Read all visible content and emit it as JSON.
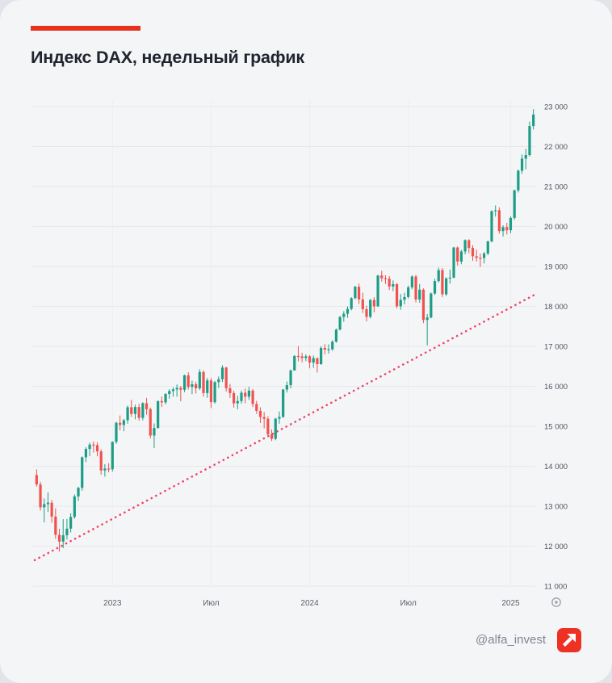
{
  "card": {
    "accent_color": "#e5321e"
  },
  "header": {
    "title": "Индекс DAX, недельный график"
  },
  "footer": {
    "handle": "@alfa_invest",
    "logo_color": "#ee3124",
    "logo_icon": "arrow-up-right"
  },
  "chart_data": {
    "type": "candlestick",
    "title": "Индекс DAX, недельный график",
    "timeframe": "weekly",
    "legend": "none",
    "grid": "on",
    "y_axis": {
      "position": "right",
      "min": 11000,
      "max": 23000,
      "step": 1000,
      "tick_labels": [
        "23 000",
        "22 000",
        "21 000",
        "20 000",
        "19 000",
        "18 000",
        "17 000",
        "16 000",
        "15 000",
        "14 000",
        "13 000",
        "12 000",
        "11 000"
      ]
    },
    "x_axis": {
      "ticks": [
        {
          "label": "2023",
          "index": 20.5
        },
        {
          "label": "Июл",
          "index": 46.5
        },
        {
          "label": "2024",
          "index": 72.5
        },
        {
          "label": "Июл",
          "index": 98.5
        },
        {
          "label": "2025",
          "index": 125.5
        }
      ]
    },
    "colors": {
      "up": "#1d9d86",
      "down": "#ef5350",
      "trendline": "#f04463",
      "grid": "#e7e8ec",
      "grid_v": "#ededf1",
      "axis_text": "#4d525b"
    },
    "trendline": {
      "style": "dotted",
      "start": {
        "index": 0,
        "value": 11650
      },
      "end": {
        "index": 132,
        "value": 18300
      }
    },
    "ohlc": [
      [
        13780,
        13920,
        13490,
        13544
      ],
      [
        13544,
        13610,
        12890,
        12971
      ],
      [
        12971,
        13195,
        12595,
        13050
      ],
      [
        13050,
        13345,
        12855,
        13088
      ],
      [
        13088,
        13155,
        12588,
        12741
      ],
      [
        12741,
        12945,
        12182,
        12284
      ],
      [
        12284,
        12435,
        11862,
        12114
      ],
      [
        12114,
        12675,
        11950,
        12273
      ],
      [
        12273,
        12680,
        12164,
        12438
      ],
      [
        12438,
        12825,
        12342,
        12731
      ],
      [
        12731,
        13295,
        12685,
        13244
      ],
      [
        13244,
        13485,
        13130,
        13460
      ],
      [
        13460,
        14245,
        13388,
        14224
      ],
      [
        14224,
        14475,
        14105,
        14432
      ],
      [
        14432,
        14590,
        14250,
        14541
      ],
      [
        14541,
        14620,
        14342,
        14529
      ],
      [
        14529,
        14600,
        14248,
        14371
      ],
      [
        14371,
        14425,
        13792,
        13894
      ],
      [
        13894,
        14050,
        13740,
        13941
      ],
      [
        13941,
        14075,
        13848,
        13924
      ],
      [
        13924,
        14620,
        13870,
        14610
      ],
      [
        14610,
        15115,
        14560,
        15087
      ],
      [
        15087,
        15270,
        14900,
        15034
      ],
      [
        15034,
        15185,
        14875,
        15150
      ],
      [
        15150,
        15520,
        15065,
        15476
      ],
      [
        15476,
        15660,
        15235,
        15308
      ],
      [
        15308,
        15540,
        15175,
        15482
      ],
      [
        15482,
        15560,
        15140,
        15210
      ],
      [
        15210,
        15600,
        15152,
        15578
      ],
      [
        15578,
        15710,
        15290,
        15428
      ],
      [
        15428,
        15465,
        14696,
        14768
      ],
      [
        14768,
        15070,
        14458,
        14957
      ],
      [
        14957,
        15645,
        14940,
        15629
      ],
      [
        15629,
        15745,
        15482,
        15598
      ],
      [
        15598,
        15830,
        15550,
        15808
      ],
      [
        15808,
        15925,
        15690,
        15882
      ],
      [
        15882,
        15975,
        15740,
        15922
      ],
      [
        15922,
        16045,
        15740,
        15961
      ],
      [
        15961,
        16010,
        15625,
        15914
      ],
      [
        15914,
        16290,
        15855,
        16275
      ],
      [
        16275,
        16352,
        15920,
        15984
      ],
      [
        15984,
        16140,
        15805,
        16051
      ],
      [
        16051,
        16115,
        15820,
        15950
      ],
      [
        15950,
        16427,
        15910,
        16358
      ],
      [
        16358,
        16400,
        15740,
        15830
      ],
      [
        15830,
        16210,
        15715,
        16148
      ],
      [
        16148,
        16210,
        15455,
        15603
      ],
      [
        15603,
        16135,
        15565,
        16105
      ],
      [
        16105,
        16245,
        15960,
        16177
      ],
      [
        16177,
        16528,
        16105,
        16469
      ],
      [
        16469,
        16490,
        15870,
        15952
      ],
      [
        15952,
        16060,
        15710,
        15832
      ],
      [
        15832,
        15890,
        15468,
        15574
      ],
      [
        15574,
        15760,
        15425,
        15631
      ],
      [
        15631,
        15895,
        15565,
        15840
      ],
      [
        15840,
        15945,
        15575,
        15740
      ],
      [
        15740,
        15990,
        15660,
        15893
      ],
      [
        15893,
        15935,
        15480,
        15557
      ],
      [
        15557,
        15635,
        15310,
        15386
      ],
      [
        15386,
        15475,
        15080,
        15230
      ],
      [
        15230,
        15355,
        14948,
        15187
      ],
      [
        15187,
        15250,
        14740,
        14798
      ],
      [
        14798,
        14922,
        14630,
        14687
      ],
      [
        14687,
        15210,
        14650,
        15189
      ],
      [
        15189,
        15368,
        15065,
        15234
      ],
      [
        15234,
        15935,
        15210,
        15919
      ],
      [
        15919,
        16120,
        15845,
        16029
      ],
      [
        16029,
        16420,
        15948,
        16397
      ],
      [
        16397,
        16780,
        16390,
        16759
      ],
      [
        16759,
        17003,
        16625,
        16751
      ],
      [
        16751,
        16840,
        16600,
        16706
      ],
      [
        16706,
        16800,
        16630,
        16752
      ],
      [
        16752,
        16780,
        16450,
        16594
      ],
      [
        16594,
        16770,
        16465,
        16704
      ],
      [
        16704,
        16720,
        16345,
        16555
      ],
      [
        16555,
        17005,
        16540,
        16961
      ],
      [
        16961,
        17055,
        16800,
        16918
      ],
      [
        16918,
        17050,
        16820,
        16926
      ],
      [
        16926,
        17150,
        16890,
        17117
      ],
      [
        17117,
        17445,
        17090,
        17419
      ],
      [
        17419,
        17760,
        17400,
        17735
      ],
      [
        17735,
        17880,
        17615,
        17815
      ],
      [
        17815,
        18000,
        17715,
        17937
      ],
      [
        17937,
        18230,
        17900,
        18205
      ],
      [
        18205,
        18513,
        18180,
        18492
      ],
      [
        18492,
        18570,
        18060,
        18175
      ],
      [
        18175,
        18340,
        17830,
        17930
      ],
      [
        17930,
        18020,
        17625,
        17737
      ],
      [
        17737,
        18185,
        17700,
        18161
      ],
      [
        18161,
        18230,
        17850,
        18001
      ],
      [
        18001,
        18790,
        17990,
        18773
      ],
      [
        18773,
        18893,
        18620,
        18704
      ],
      [
        18704,
        18780,
        18560,
        18693
      ],
      [
        18693,
        18760,
        18410,
        18497
      ],
      [
        18497,
        18650,
        18385,
        18557
      ],
      [
        18557,
        18580,
        17950,
        18002
      ],
      [
        18002,
        18310,
        17915,
        18164
      ],
      [
        18164,
        18340,
        18050,
        18235
      ],
      [
        18235,
        18520,
        18200,
        18476
      ],
      [
        18476,
        18780,
        18425,
        18748
      ],
      [
        18748,
        18790,
        18100,
        18172
      ],
      [
        18172,
        18560,
        18090,
        18418
      ],
      [
        18418,
        18450,
        17580,
        17661
      ],
      [
        17661,
        17810,
        17024,
        17722
      ],
      [
        17722,
        18350,
        17700,
        18322
      ],
      [
        18322,
        18690,
        18290,
        18633
      ],
      [
        18633,
        18971,
        18600,
        18907
      ],
      [
        18907,
        18960,
        18230,
        18302
      ],
      [
        18302,
        18730,
        18265,
        18699
      ],
      [
        18699,
        18920,
        18570,
        18720
      ],
      [
        18720,
        19492,
        18700,
        19474
      ],
      [
        19474,
        19500,
        19020,
        19121
      ],
      [
        19121,
        19415,
        19055,
        19374
      ],
      [
        19374,
        19675,
        19300,
        19657
      ],
      [
        19657,
        19680,
        19330,
        19463
      ],
      [
        19463,
        19530,
        19140,
        19255
      ],
      [
        19255,
        19420,
        19120,
        19215
      ],
      [
        19215,
        19320,
        18985,
        19211
      ],
      [
        19211,
        19365,
        19075,
        19323
      ],
      [
        19323,
        19645,
        19280,
        19626
      ],
      [
        19626,
        20400,
        19600,
        20385
      ],
      [
        20385,
        20525,
        20245,
        20406
      ],
      [
        20406,
        20480,
        19820,
        19885
      ],
      [
        19885,
        20030,
        19750,
        19984
      ],
      [
        19984,
        20090,
        19800,
        19906
      ],
      [
        19906,
        20250,
        19830,
        20215
      ],
      [
        20215,
        20925,
        20165,
        20903
      ],
      [
        20903,
        21425,
        20850,
        21394
      ],
      [
        21394,
        21800,
        21320,
        21697
      ],
      [
        21697,
        21945,
        21430,
        21787
      ],
      [
        21787,
        22625,
        21750,
        22513
      ],
      [
        22513,
        22935,
        22425,
        22800
      ]
    ]
  }
}
